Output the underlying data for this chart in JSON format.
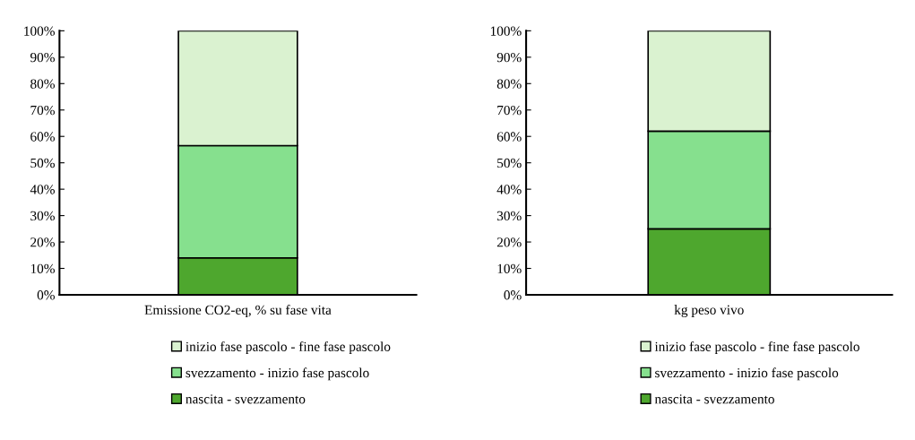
{
  "chart_data": [
    {
      "type": "bar",
      "stacked": true,
      "categories": [
        "Emissione CO2-eq, % su fase vita"
      ],
      "series": [
        {
          "name": "nascita - svezzamento",
          "color": "#4ea72e",
          "values": [
            14
          ]
        },
        {
          "name": "svezzamento - inizio fase pascolo",
          "color": "#86e08e",
          "values": [
            42.5
          ]
        },
        {
          "name": "inizio fase pascolo - fine fase pascolo",
          "color": "#daf2d0",
          "values": [
            43.5
          ]
        }
      ],
      "ylim": [
        0,
        100
      ],
      "yticks": [
        {
          "value": 0,
          "label": "0%"
        },
        {
          "value": 10,
          "label": "10%"
        },
        {
          "value": 20,
          "label": "20%"
        },
        {
          "value": 30,
          "label": "30%"
        },
        {
          "value": 40,
          "label": "40%"
        },
        {
          "value": 50,
          "label": "50%"
        },
        {
          "value": 60,
          "label": "60%"
        },
        {
          "value": 70,
          "label": "70%"
        },
        {
          "value": 80,
          "label": "80%"
        },
        {
          "value": 90,
          "label": "90%"
        },
        {
          "value": 100,
          "label": "100%"
        }
      ],
      "grid": false,
      "legend": "bottom"
    },
    {
      "type": "bar",
      "stacked": true,
      "categories": [
        "kg peso vivo"
      ],
      "series": [
        {
          "name": "nascita - svezzamento",
          "color": "#4ea72e",
          "values": [
            25
          ]
        },
        {
          "name": "svezzamento - inizio fase pascolo",
          "color": "#86e08e",
          "values": [
            37
          ]
        },
        {
          "name": "inizio fase pascolo - fine fase pascolo",
          "color": "#daf2d0",
          "values": [
            38
          ]
        }
      ],
      "ylim": [
        0,
        100
      ],
      "yticks": [
        {
          "value": 0,
          "label": "0%"
        },
        {
          "value": 10,
          "label": "10%"
        },
        {
          "value": 20,
          "label": "20%"
        },
        {
          "value": 30,
          "label": "30%"
        },
        {
          "value": 40,
          "label": "40%"
        },
        {
          "value": 50,
          "label": "50%"
        },
        {
          "value": 60,
          "label": "60%"
        },
        {
          "value": 70,
          "label": "70%"
        },
        {
          "value": 80,
          "label": "80%"
        },
        {
          "value": 90,
          "label": "90%"
        },
        {
          "value": 100,
          "label": "100%"
        }
      ],
      "grid": false,
      "legend": "bottom"
    }
  ]
}
